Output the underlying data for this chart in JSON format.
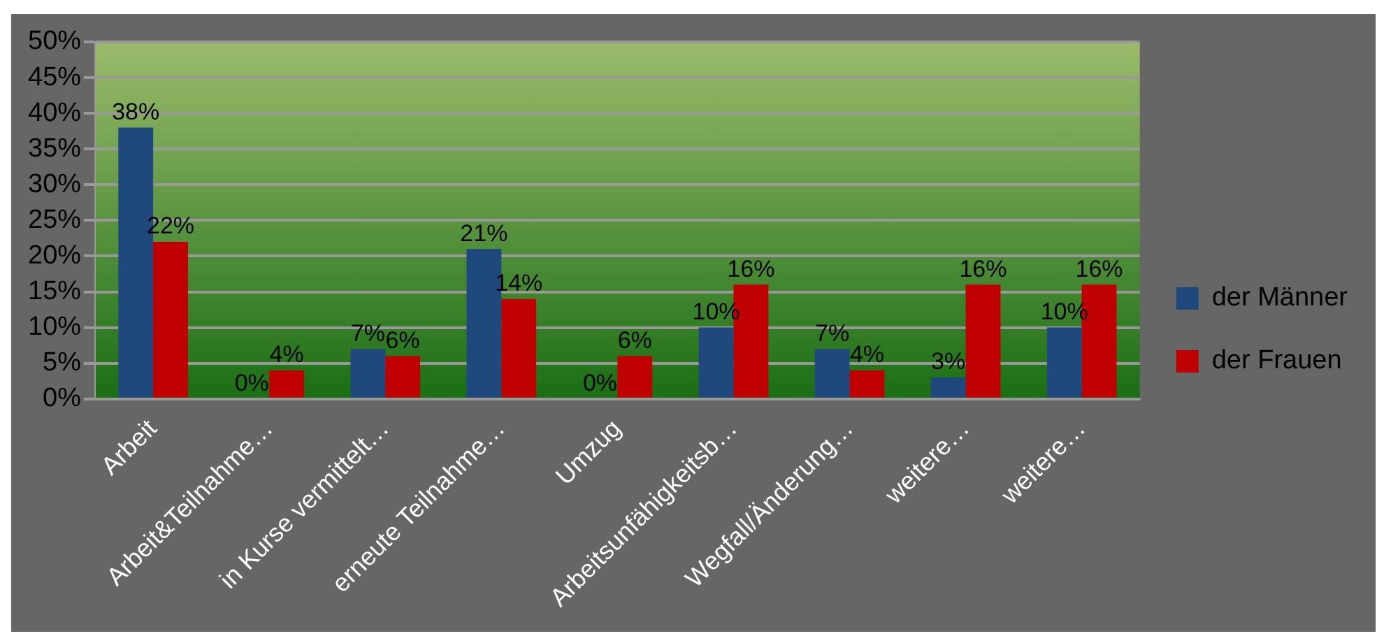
{
  "chart_data": {
    "type": "bar",
    "categories": [
      "Arbeit",
      "Arbeit&Teilnahme…",
      "in Kurse vermittelt…",
      "erneute Teilnahme…",
      "Umzug",
      "Arbeitsunfähigkeitsb…",
      "Wegfall/Änderung…",
      "weitere…",
      "weitere…"
    ],
    "series": [
      {
        "name": "der Männer",
        "color": "#1f497d",
        "values": [
          38,
          0,
          7,
          21,
          0,
          10,
          7,
          3,
          10
        ],
        "value_labels": [
          "38%",
          "0%",
          "7%",
          "21%",
          "0%",
          "10%",
          "7%",
          "3%",
          "10%"
        ]
      },
      {
        "name": "der Frauen",
        "color": "#c00000",
        "values": [
          22,
          4,
          6,
          14,
          6,
          16,
          4,
          16,
          16
        ],
        "value_labels": [
          "22%",
          "4%",
          "6%",
          "14%",
          "6%",
          "16%",
          "4%",
          "16%",
          "16%"
        ]
      }
    ],
    "ylim": [
      0,
      50
    ],
    "yticks": [
      {
        "value": 0,
        "label": "0%"
      },
      {
        "value": 5,
        "label": "5%"
      },
      {
        "value": 10,
        "label": "10%"
      },
      {
        "value": 15,
        "label": "15%"
      },
      {
        "value": 20,
        "label": "20%"
      },
      {
        "value": 25,
        "label": "25%"
      },
      {
        "value": 30,
        "label": "30%"
      },
      {
        "value": 35,
        "label": "35%"
      },
      {
        "value": 40,
        "label": "40%"
      },
      {
        "value": 45,
        "label": "45%"
      },
      {
        "value": 50,
        "label": "50%"
      }
    ],
    "grid": "y",
    "legend": "right"
  }
}
